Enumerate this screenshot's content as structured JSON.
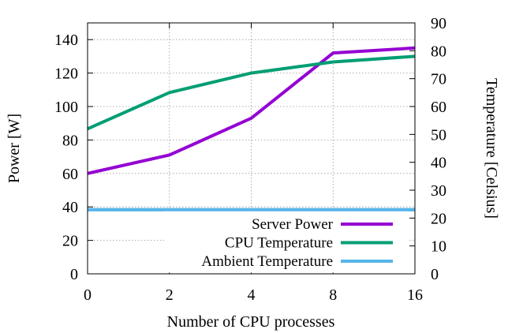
{
  "chart_data": {
    "type": "line",
    "title": "",
    "xlabel": "Number of CPU processes",
    "ylabel_left": "Power [W]",
    "ylabel_right": "Temperature [Celsius]",
    "x_categories": [
      "0",
      "2",
      "4",
      "8",
      "16"
    ],
    "ylim_left": [
      0,
      150
    ],
    "ylim_right": [
      0,
      90
    ],
    "yticks_left": [
      0,
      20,
      40,
      60,
      80,
      100,
      120,
      140
    ],
    "yticks_right": [
      0,
      10,
      20,
      30,
      40,
      50,
      60,
      70,
      80,
      90
    ],
    "grid": true,
    "legend_position": "bottom-right",
    "series": [
      {
        "name": "Server Power",
        "axis": "left",
        "color": "#9400d3",
        "values": [
          60,
          71,
          93,
          132,
          135
        ]
      },
      {
        "name": "CPU Temperature",
        "axis": "right",
        "color": "#009e73",
        "values": [
          52,
          65,
          72,
          76,
          78
        ]
      },
      {
        "name": "Ambient Temperature",
        "axis": "right",
        "color": "#56b4e9",
        "values": [
          23,
          23,
          23,
          23,
          23
        ]
      }
    ]
  }
}
